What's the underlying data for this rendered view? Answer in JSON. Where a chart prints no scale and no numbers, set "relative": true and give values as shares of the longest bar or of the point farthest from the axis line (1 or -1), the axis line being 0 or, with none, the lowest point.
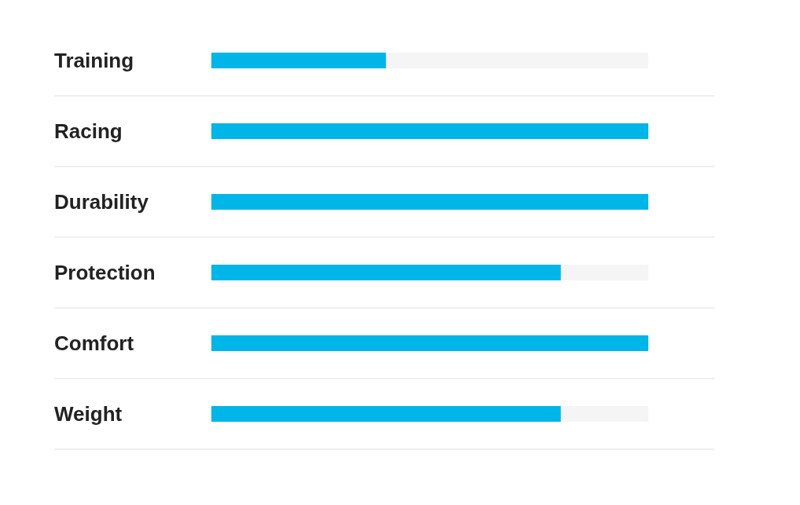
{
  "chart_data": {
    "type": "bar",
    "orientation": "horizontal",
    "stacked": true,
    "relative": true,
    "grid": "y",
    "categories": [
      "Training",
      "Racing",
      "Durability",
      "Protection",
      "Comfort",
      "Weight"
    ],
    "series": [
      {
        "color": "#00b5e8",
        "values": [
          0.4,
          1,
          1,
          0.8,
          1,
          0.8
        ]
      },
      {
        "color": "#f5f5f5",
        "values": [
          0.6,
          0,
          0,
          0.2,
          0,
          0.2
        ]
      }
    ]
  }
}
